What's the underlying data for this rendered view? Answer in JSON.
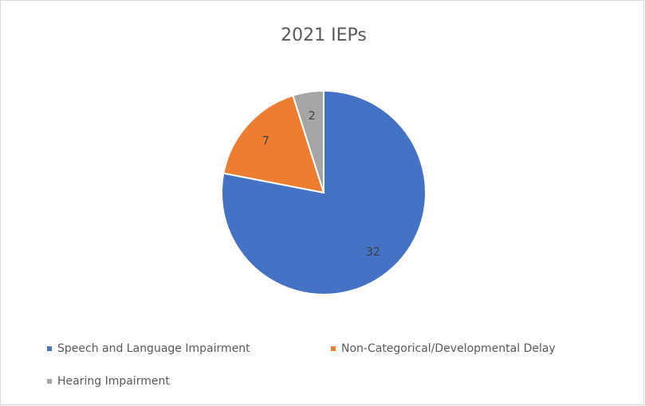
{
  "chart_data": {
    "type": "pie",
    "title": "2021 IEPs",
    "categories": [
      "Speech and Language Impairment",
      "Non-Categorical/Developmental Delay",
      "Hearing Impairment"
    ],
    "values": [
      32,
      7,
      2
    ],
    "colors": [
      "#4472c4",
      "#ed7d31",
      "#a5a5a5"
    ],
    "legend": "bottom"
  }
}
